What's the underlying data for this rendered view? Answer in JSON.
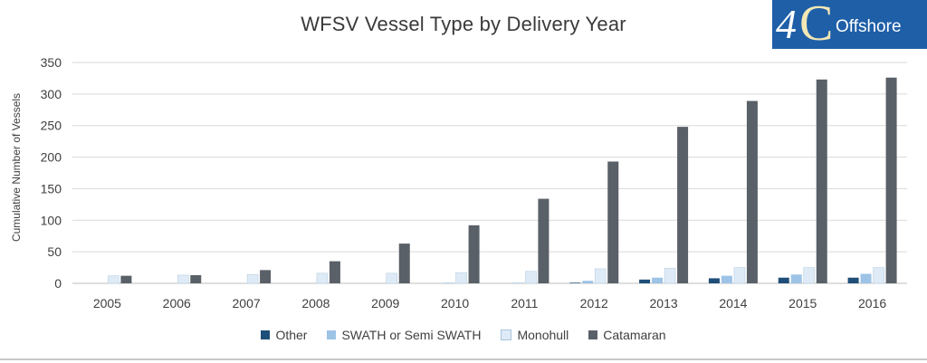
{
  "logo": {
    "four": "4",
    "c": "C",
    "word": "Offshore"
  },
  "chart_data": {
    "type": "bar",
    "title": "WFSV Vessel Type by Delivery Year",
    "xlabel": "",
    "ylabel": "Cumulative Number of Vessels",
    "ylim": [
      0,
      350
    ],
    "yticks": [
      0,
      50,
      100,
      150,
      200,
      250,
      300,
      350
    ],
    "grid": true,
    "legend_position": "bottom",
    "categories": [
      "2005",
      "2006",
      "2007",
      "2008",
      "2009",
      "2010",
      "2011",
      "2012",
      "2013",
      "2014",
      "2015",
      "2016"
    ],
    "series": [
      {
        "name": "Other",
        "color": "#1f4e79",
        "values": [
          0,
          0,
          0,
          0,
          0,
          0,
          0,
          1,
          6,
          8,
          9,
          9
        ]
      },
      {
        "name": "SWATH or Semi SWATH",
        "color": "#9dc3e6",
        "values": [
          0,
          0,
          0,
          0,
          0,
          1,
          1,
          4,
          9,
          12,
          14,
          15
        ]
      },
      {
        "name": "Monohull",
        "color": "#deebf7",
        "values": [
          12,
          13,
          14,
          16,
          16,
          17,
          19,
          23,
          24,
          25,
          25,
          25
        ]
      },
      {
        "name": "Catamaran",
        "color": "#5a6068",
        "values": [
          12,
          13,
          21,
          35,
          63,
          92,
          134,
          193,
          248,
          289,
          323,
          326
        ]
      }
    ]
  }
}
